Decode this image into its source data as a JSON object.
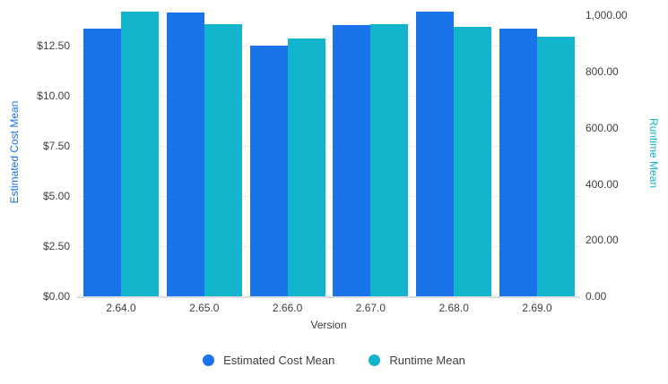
{
  "chart_data": {
    "type": "bar",
    "subtype": "grouped-dual-axis",
    "categories": [
      "2.64.0",
      "2.65.0",
      "2.66.0",
      "2.67.0",
      "2.68.0",
      "2.69.0"
    ],
    "series": [
      {
        "name": "Estimated Cost Mean",
        "axis": "left",
        "color": "#1a73e8",
        "values": [
          13.33,
          14.14,
          12.5,
          13.51,
          14.18,
          13.36
        ]
      },
      {
        "name": "Runtime Mean",
        "axis": "right",
        "color": "#12b5cb",
        "values": [
          1012,
          970,
          919,
          968,
          959,
          924
        ]
      }
    ],
    "title": "",
    "xlabel": "Version",
    "left_axis": {
      "title": "Estimated Cost Mean",
      "color": "#1a73e8",
      "ylim": [
        0,
        14.3
      ],
      "ticks": [
        {
          "value": 0,
          "label": "$0.00"
        },
        {
          "value": 2.5,
          "label": "$2.50"
        },
        {
          "value": 5,
          "label": "$5.00"
        },
        {
          "value": 7.5,
          "label": "$7.50"
        },
        {
          "value": 10,
          "label": "$10.00"
        },
        {
          "value": 12.5,
          "label": "$12.50"
        }
      ]
    },
    "right_axis": {
      "title": "Runtime Mean",
      "color": "#12b5cb",
      "ylim": [
        0,
        1023
      ],
      "ticks": [
        {
          "value": 0,
          "label": "0.00"
        },
        {
          "value": 200,
          "label": "200.00"
        },
        {
          "value": 400,
          "label": "400.00"
        },
        {
          "value": 600,
          "label": "600.00"
        },
        {
          "value": 800,
          "label": "800.00"
        },
        {
          "value": 1000,
          "label": "1,000.00"
        }
      ]
    },
    "grid": true,
    "legend": {
      "position": "bottom",
      "items": [
        {
          "label": "Estimated Cost Mean",
          "color": "#1a73e8"
        },
        {
          "label": "Runtime Mean",
          "color": "#12b5cb"
        }
      ]
    }
  }
}
